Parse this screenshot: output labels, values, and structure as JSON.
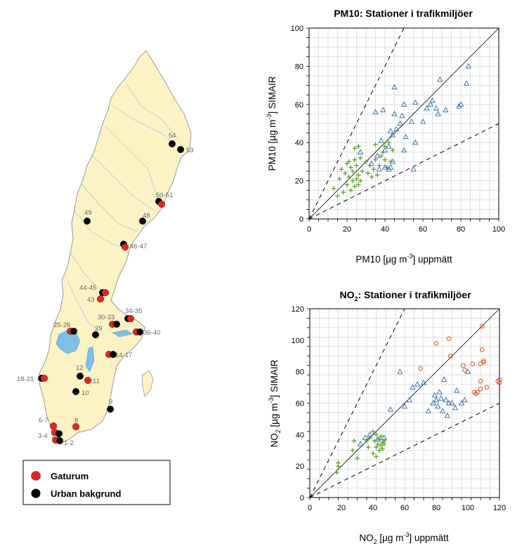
{
  "map": {
    "stations": [
      {
        "label": "54",
        "type": "urban"
      },
      {
        "label": "53",
        "type": "urban"
      },
      {
        "label": "50-51",
        "type": "mixed"
      },
      {
        "label": "49",
        "type": "urban"
      },
      {
        "label": "48",
        "type": "urban"
      },
      {
        "label": "46-47",
        "type": "mixed"
      },
      {
        "label": "44-45",
        "type": "mixed"
      },
      {
        "label": "43",
        "type": "street"
      },
      {
        "label": "34-35",
        "type": "mixed"
      },
      {
        "label": "30-33",
        "type": "mixed"
      },
      {
        "label": "36-40",
        "type": "mixed"
      },
      {
        "label": "25-26",
        "type": "mixed"
      },
      {
        "label": "29",
        "type": "urban"
      },
      {
        "label": "14-17",
        "type": "mixed"
      },
      {
        "label": "12",
        "type": "urban"
      },
      {
        "label": "11",
        "type": "street"
      },
      {
        "label": "18-21",
        "type": "mixed"
      },
      {
        "label": "10",
        "type": "urban"
      },
      {
        "label": "9",
        "type": "urban"
      },
      {
        "label": "8",
        "type": "street"
      },
      {
        "label": "6-7",
        "type": "street"
      },
      {
        "label": "3-4",
        "type": "mixed"
      },
      {
        "label": "1-2",
        "type": "mixed"
      }
    ],
    "legend": [
      {
        "label": "Gaturum",
        "color": "#e8231f"
      },
      {
        "label": "Urban bakgrund",
        "color": "#000000"
      }
    ],
    "colors": {
      "land": "#fbf3c4",
      "water": "#7fbfe5",
      "street": "#e8231f",
      "urban": "#000000"
    }
  },
  "chart_data": [
    {
      "type": "scatter",
      "title": "PM10: Stationer i trafikmiljöer",
      "xlabel_main": "PM10 [µg m",
      "xlabel_sup": "-3",
      "xlabel_tail": "] uppmätt",
      "ylabel_main": "PM10 [µg m",
      "ylabel_sup": "-3",
      "ylabel_tail": "] SIMAIR",
      "xlim": [
        0,
        100
      ],
      "ylim": [
        0,
        100
      ],
      "xticks": [
        0,
        20,
        40,
        60,
        80,
        100
      ],
      "yticks": [
        0,
        20,
        40,
        60,
        80,
        100
      ],
      "grid": true,
      "reference_lines": [
        {
          "slope": 1,
          "style": "solid"
        },
        {
          "slope": 2,
          "style": "dashed"
        },
        {
          "slope": 0.5,
          "style": "dashed"
        }
      ],
      "series": [
        {
          "marker": "plus",
          "color": "#5aa02c",
          "points": [
            [
              13,
              16
            ],
            [
              15,
              12
            ],
            [
              16,
              21
            ],
            [
              17,
              26
            ],
            [
              18,
              14
            ],
            [
              19,
              24
            ],
            [
              20,
              18
            ],
            [
              20,
              29
            ],
            [
              21,
              22
            ],
            [
              21,
              30
            ],
            [
              22,
              15
            ],
            [
              22,
              27
            ],
            [
              23,
              20
            ],
            [
              23,
              25
            ],
            [
              24,
              17
            ],
            [
              24,
              31
            ],
            [
              24,
              37
            ],
            [
              25,
              21
            ],
            [
              25,
              28
            ],
            [
              26,
              18
            ],
            [
              26,
              23
            ],
            [
              26,
              38
            ],
            [
              27,
              20
            ],
            [
              27,
              32
            ],
            [
              28,
              25
            ],
            [
              30,
              30
            ],
            [
              31,
              24
            ],
            [
              32,
              28
            ],
            [
              33,
              22
            ],
            [
              34,
              26
            ],
            [
              35,
              31
            ],
            [
              35,
              39
            ],
            [
              36,
              23
            ],
            [
              37,
              28
            ],
            [
              38,
              33
            ],
            [
              39,
              35
            ],
            [
              40,
              31
            ],
            [
              40,
              38
            ],
            [
              41,
              27
            ],
            [
              42,
              40
            ],
            [
              43,
              30
            ],
            [
              44,
              36
            ]
          ]
        },
        {
          "marker": "triangle",
          "color": "#3b78b5",
          "points": [
            [
              27,
              35
            ],
            [
              33,
              29
            ],
            [
              35,
              56
            ],
            [
              36,
              33
            ],
            [
              37,
              26
            ],
            [
              38,
              41
            ],
            [
              39,
              57
            ],
            [
              40,
              27
            ],
            [
              40,
              36
            ],
            [
              42,
              38
            ],
            [
              42,
              26
            ],
            [
              43,
              27
            ],
            [
              43,
              46
            ],
            [
              44,
              44
            ],
            [
              44,
              30
            ],
            [
              45,
              69
            ],
            [
              45,
              55
            ],
            [
              46,
              47
            ],
            [
              48,
              50
            ],
            [
              49,
              54
            ],
            [
              50,
              36
            ],
            [
              50,
              60
            ],
            [
              51,
              43
            ],
            [
              54,
              51
            ],
            [
              55,
              26
            ],
            [
              56,
              40
            ],
            [
              56,
              61
            ],
            [
              60,
              51
            ],
            [
              62,
              58
            ],
            [
              64,
              60
            ],
            [
              65,
              62
            ],
            [
              67,
              58
            ],
            [
              68,
              55
            ],
            [
              69,
              73
            ],
            [
              72,
              57
            ],
            [
              79,
              59
            ],
            [
              80,
              60
            ],
            [
              83,
              71
            ],
            [
              84,
              80
            ]
          ]
        }
      ]
    },
    {
      "type": "scatter",
      "title_main": "NO",
      "title_sub": "2",
      "title_tail": ": Stationer i trafikmiljöer",
      "xlabel_main": "NO",
      "xlabel_sub": "2",
      "xlabel_mid": " [µg m",
      "xlabel_sup": "-3",
      "xlabel_tail": "] uppmätt",
      "ylabel_main": "NO",
      "ylabel_sub": "2",
      "ylabel_mid": " [µg m",
      "ylabel_sup": "-3",
      "ylabel_tail": "] SIMAIR",
      "xlim": [
        0,
        120
      ],
      "ylim": [
        0,
        120
      ],
      "xticks": [
        0,
        20,
        40,
        60,
        80,
        100,
        120
      ],
      "yticks": [
        0,
        20,
        40,
        60,
        80,
        100,
        120
      ],
      "grid": true,
      "reference_lines": [
        {
          "slope": 1,
          "style": "solid"
        },
        {
          "slope": 2,
          "style": "dashed"
        },
        {
          "slope": 0.5,
          "style": "dashed"
        }
      ],
      "series": [
        {
          "marker": "plus",
          "color": "#5aa02c",
          "points": [
            [
              17,
              16
            ],
            [
              18,
              20
            ],
            [
              18,
              22
            ],
            [
              27,
              30
            ],
            [
              28,
              36
            ],
            [
              30,
              25
            ],
            [
              36,
              36
            ],
            [
              37,
              32
            ],
            [
              38,
              38
            ],
            [
              40,
              28
            ],
            [
              40,
              42
            ],
            [
              41,
              36
            ],
            [
              42,
              32
            ],
            [
              42,
              26
            ],
            [
              42,
              40
            ],
            [
              43,
              34
            ],
            [
              44,
              30
            ],
            [
              44,
              37
            ],
            [
              45,
              33
            ],
            [
              45,
              39
            ],
            [
              46,
              35
            ],
            [
              46,
              31
            ],
            [
              47,
              36
            ],
            [
              47,
              34
            ]
          ]
        },
        {
          "marker": "triangle",
          "color": "#3b78b5",
          "points": [
            [
              32,
              34
            ],
            [
              35,
              38
            ],
            [
              38,
              40
            ],
            [
              43,
              37
            ],
            [
              47,
              38
            ],
            [
              51,
              56
            ],
            [
              57,
              80
            ],
            [
              60,
              58
            ],
            [
              63,
              62
            ],
            [
              65,
              70
            ],
            [
              68,
              72
            ],
            [
              72,
              73
            ],
            [
              75,
              55
            ],
            [
              78,
              60
            ],
            [
              79,
              65
            ],
            [
              80,
              62
            ],
            [
              81,
              58
            ],
            [
              82,
              67
            ],
            [
              83,
              63
            ],
            [
              84,
              55
            ],
            [
              85,
              75
            ],
            [
              86,
              62
            ],
            [
              87,
              52
            ],
            [
              88,
              60
            ],
            [
              90,
              60
            ],
            [
              92,
              57
            ],
            [
              93,
              68
            ],
            [
              96,
              60
            ],
            [
              98,
              62
            ],
            [
              100,
              80
            ]
          ]
        },
        {
          "marker": "circle",
          "color": "#d9531e",
          "points": [
            [
              70,
              82
            ],
            [
              80,
              98
            ],
            [
              88,
              101
            ],
            [
              89,
              90
            ],
            [
              97,
              84
            ],
            [
              98,
              81
            ],
            [
              103,
              85
            ],
            [
              104,
              67
            ],
            [
              105,
              66
            ],
            [
              106,
              67
            ],
            [
              108,
              74
            ],
            [
              108,
              69
            ],
            [
              108,
              85
            ],
            [
              109,
              109
            ],
            [
              109,
              94
            ],
            [
              110,
              86
            ],
            [
              110,
              87
            ],
            [
              112,
              70
            ],
            [
              119,
              74
            ],
            [
              120,
              75
            ],
            [
              120,
              73
            ]
          ]
        }
      ]
    }
  ]
}
